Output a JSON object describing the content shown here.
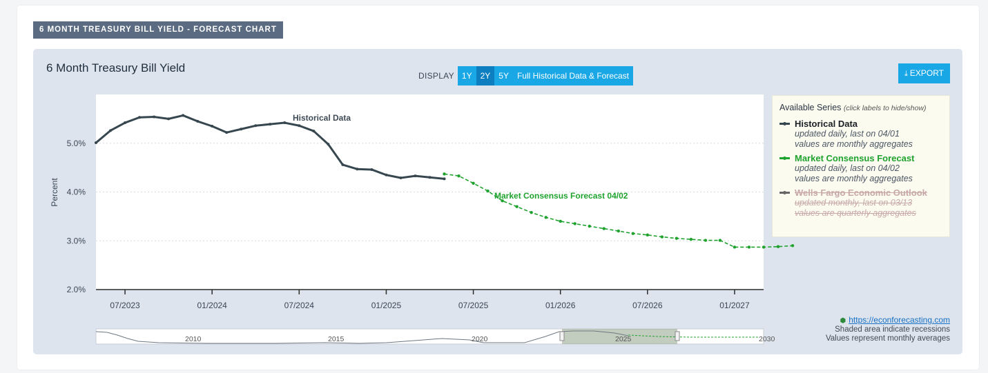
{
  "section_tag": "6 MONTH TREASURY BILL YIELD - FORECAST CHART",
  "chart_title": "6 Month Treasury Bill Yield",
  "display": {
    "label": "DISPLAY",
    "options": [
      "1Y",
      "2Y",
      "5Y",
      "Full Historical Data & Forecast"
    ],
    "selected": "2Y"
  },
  "export_label": "EXPORT",
  "legend": {
    "heading": "Available Series",
    "hint": "(click labels to hide/show)",
    "items": [
      {
        "name": "Historical Data",
        "line1": "updated daily, last on 04/01",
        "line2": "values are monthly aggregates",
        "color": "#37474f",
        "hidden": false
      },
      {
        "name": "Market Consensus Forecast",
        "line1": "updated daily, last on 04/02",
        "line2": "values are monthly aggregates",
        "color": "#1fa22e",
        "hidden": false
      },
      {
        "name": "Wells Fargo Economic Outlook",
        "line1": "updated monthly, last on 03/13",
        "line2": "values are quarterly aggregates",
        "color": "#666666",
        "hidden": true
      }
    ]
  },
  "footer": {
    "link": "https://econforecasting.com",
    "line1": "Shaded area indicate recessions",
    "line2": "Values represent monthly averages"
  },
  "navigator": {
    "labels": [
      "2010",
      "2015",
      "2020",
      "2025",
      "2030"
    ]
  },
  "chart_data": {
    "type": "line",
    "ylabel": "Percent",
    "ylim": [
      2.0,
      6.0
    ],
    "yticks": [
      "2.0%",
      "3.0%",
      "4.0%",
      "5.0%"
    ],
    "ytick_values": [
      2.0,
      3.0,
      4.0,
      5.0
    ],
    "xticks": [
      "07/2023",
      "01/2024",
      "07/2024",
      "01/2025",
      "07/2025",
      "01/2026",
      "07/2026",
      "01/2027"
    ],
    "xtick_month_index": [
      2,
      8,
      14,
      20,
      26,
      32,
      38,
      44
    ],
    "x_start": "05/2023",
    "x_end": "03/2027",
    "grid": true,
    "series": [
      {
        "name": "Historical Data",
        "annotation": "Historical Data",
        "color": "#37474f",
        "start_month_index": 0,
        "values": [
          5.01,
          5.26,
          5.42,
          5.53,
          5.54,
          5.5,
          5.57,
          5.45,
          5.35,
          5.22,
          5.29,
          5.36,
          5.39,
          5.42,
          5.36,
          5.25,
          4.98,
          4.56,
          4.47,
          4.46,
          4.35,
          4.29,
          4.33,
          4.3,
          4.27
        ]
      },
      {
        "name": "Market Consensus Forecast",
        "annotation": "Market Consensus Forecast 04/02",
        "color": "#1fa22e",
        "start_month_index": 24,
        "values": [
          4.37,
          4.33,
          4.18,
          4.02,
          3.82,
          3.7,
          3.58,
          3.48,
          3.4,
          3.35,
          3.3,
          3.25,
          3.2,
          3.15,
          3.12,
          3.08,
          3.05,
          3.03,
          3.01,
          3.01,
          2.87,
          2.87,
          2.87,
          2.88,
          2.9
        ]
      }
    ]
  }
}
